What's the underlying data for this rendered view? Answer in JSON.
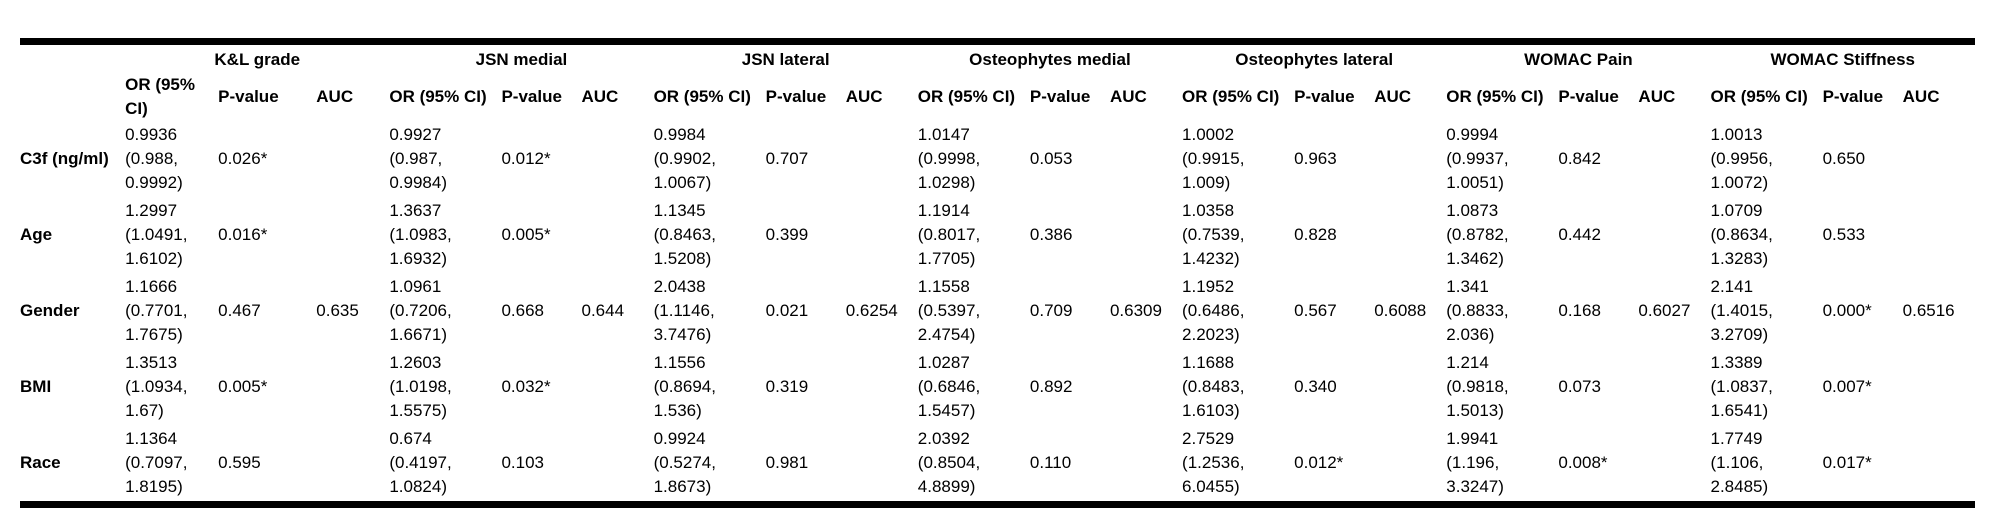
{
  "table": {
    "corner_label": "",
    "groups": [
      "K&L grade",
      "JSN medial",
      "JSN lateral",
      "Osteophytes medial",
      "Osteophytes lateral",
      "WOMAC Pain",
      "WOMAC Stiffness"
    ],
    "subheaders": [
      "OR (95% CI)",
      "P-value",
      "AUC"
    ],
    "rows": [
      {
        "label": "C3f (ng/ml)",
        "cells": [
          {
            "or": "0.9936\n(0.988,\n0.9992)",
            "p": "0.026*",
            "auc": ""
          },
          {
            "or": "0.9927\n(0.987,\n0.9984)",
            "p": "0.012*",
            "auc": ""
          },
          {
            "or": "0.9984\n(0.9902,\n1.0067)",
            "p": "0.707",
            "auc": ""
          },
          {
            "or": "1.0147\n(0.9998,\n1.0298)",
            "p": "0.053",
            "auc": ""
          },
          {
            "or": "1.0002\n(0.9915,\n1.009)",
            "p": "0.963",
            "auc": ""
          },
          {
            "or": "0.9994\n(0.9937,\n1.0051)",
            "p": "0.842",
            "auc": ""
          },
          {
            "or": "1.0013\n(0.9956,\n1.0072)",
            "p": "0.650",
            "auc": ""
          }
        ]
      },
      {
        "label": "Age",
        "cells": [
          {
            "or": "1.2997\n(1.0491,\n1.6102)",
            "p": "0.016*",
            "auc": ""
          },
          {
            "or": "1.3637\n(1.0983,\n1.6932)",
            "p": "0.005*",
            "auc": ""
          },
          {
            "or": "1.1345\n(0.8463,\n1.5208)",
            "p": "0.399",
            "auc": ""
          },
          {
            "or": "1.1914\n(0.8017,\n1.7705)",
            "p": "0.386",
            "auc": ""
          },
          {
            "or": "1.0358\n(0.7539,\n1.4232)",
            "p": "0.828",
            "auc": ""
          },
          {
            "or": "1.0873\n(0.8782,\n1.3462)",
            "p": "0.442",
            "auc": ""
          },
          {
            "or": "1.0709\n(0.8634,\n1.3283)",
            "p": "0.533",
            "auc": ""
          }
        ]
      },
      {
        "label": "Gender",
        "cells": [
          {
            "or": "1.1666\n(0.7701,\n1.7675)",
            "p": "0.467",
            "auc": "0.635"
          },
          {
            "or": "1.0961\n(0.7206,\n1.6671)",
            "p": "0.668",
            "auc": "0.644"
          },
          {
            "or": "2.0438\n(1.1146,\n3.7476)",
            "p": "0.021",
            "auc": "0.6254"
          },
          {
            "or": "1.1558\n(0.5397,\n2.4754)",
            "p": "0.709",
            "auc": "0.6309"
          },
          {
            "or": "1.1952\n(0.6486,\n2.2023)",
            "p": "0.567",
            "auc": "0.6088"
          },
          {
            "or": "1.341\n(0.8833,\n2.036)",
            "p": "0.168",
            "auc": "0.6027"
          },
          {
            "or": "2.141\n(1.4015,\n3.2709)",
            "p": "0.000*",
            "auc": "0.6516"
          }
        ]
      },
      {
        "label": "BMI",
        "cells": [
          {
            "or": "1.3513\n(1.0934,\n1.67)",
            "p": "0.005*",
            "auc": ""
          },
          {
            "or": "1.2603\n(1.0198,\n1.5575)",
            "p": "0.032*",
            "auc": ""
          },
          {
            "or": "1.1556\n(0.8694,\n1.536)",
            "p": "0.319",
            "auc": ""
          },
          {
            "or": "1.0287\n(0.6846,\n1.5457)",
            "p": "0.892",
            "auc": ""
          },
          {
            "or": "1.1688\n(0.8483,\n1.6103)",
            "p": "0.340",
            "auc": ""
          },
          {
            "or": "1.214\n(0.9818,\n1.5013)",
            "p": "0.073",
            "auc": ""
          },
          {
            "or": "1.3389\n(1.0837,\n1.6541)",
            "p": "0.007*",
            "auc": ""
          }
        ]
      },
      {
        "label": "Race",
        "cells": [
          {
            "or": "1.1364\n(0.7097,\n1.8195)",
            "p": "0.595",
            "auc": ""
          },
          {
            "or": "0.674\n(0.4197,\n1.0824)",
            "p": "0.103",
            "auc": ""
          },
          {
            "or": "0.9924\n(0.5274,\n1.8673)",
            "p": "0.981",
            "auc": ""
          },
          {
            "or": "2.0392\n(0.8504,\n4.8899)",
            "p": "0.110",
            "auc": ""
          },
          {
            "or": "2.7529\n(1.2536,\n6.0455)",
            "p": "0.012*",
            "auc": ""
          },
          {
            "or": "1.9941\n(1.196,\n3.3247)",
            "p": "0.008*",
            "auc": ""
          },
          {
            "or": "1.7749\n(1.106,\n2.8485)",
            "p": "0.017*",
            "auc": ""
          }
        ]
      }
    ]
  }
}
